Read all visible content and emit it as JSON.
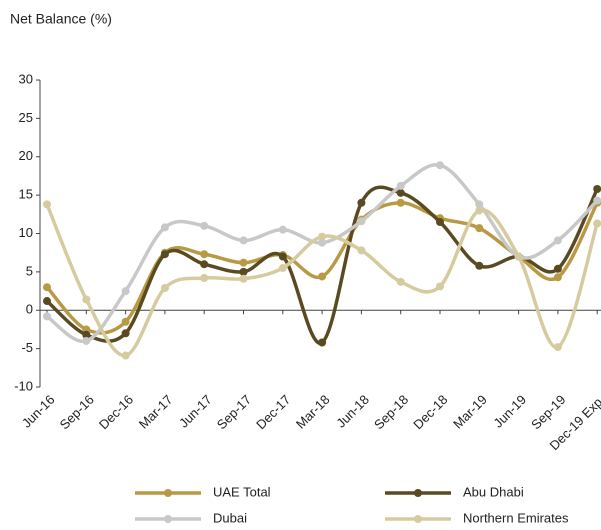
{
  "chart_data": {
    "type": "line",
    "title": "Net Balance (%)",
    "categories": [
      "Jun-16",
      "Sep-16",
      "Dec-16",
      "Mar-17",
      "Jun-17",
      "Sep-17",
      "Dec-17",
      "Mar-18",
      "Jun-18",
      "Sep-18",
      "Dec-18",
      "Mar-19",
      "Jun-19",
      "Sep-19",
      "Dec-19 Exp."
    ],
    "series": [
      {
        "name": "UAE Total",
        "color": "#b89a45",
        "values": [
          3,
          -2.5,
          -1.5,
          7.5,
          7.3,
          6.2,
          7.2,
          4.4,
          11.8,
          14,
          12,
          10.7,
          7,
          4.3,
          14
        ]
      },
      {
        "name": "Abu Dhabi",
        "color": "#5a4a22",
        "values": [
          1.2,
          -3.2,
          -3,
          7.3,
          6,
          5,
          7,
          -4.2,
          14,
          15.3,
          11.5,
          5.8,
          7,
          5.4,
          15.8
        ]
      },
      {
        "name": "Dubai",
        "color": "#c8c8c8",
        "values": [
          -0.8,
          -4,
          2.5,
          10.8,
          11,
          9.1,
          10.5,
          8.8,
          11.6,
          16.2,
          18.9,
          13.8,
          7,
          9.1,
          14.3
        ]
      },
      {
        "name": "Northern Emirates",
        "color": "#d6cb9e",
        "values": [
          13.8,
          1.4,
          -5.9,
          2.9,
          4.2,
          4.1,
          5.5,
          9.6,
          7.8,
          3.7,
          3.1,
          13,
          7,
          -4.8,
          11.3
        ]
      }
    ],
    "ylim": [
      -10,
      30
    ],
    "yticks": [
      -10,
      -5,
      0,
      5,
      10,
      15,
      20,
      25,
      30
    ]
  }
}
